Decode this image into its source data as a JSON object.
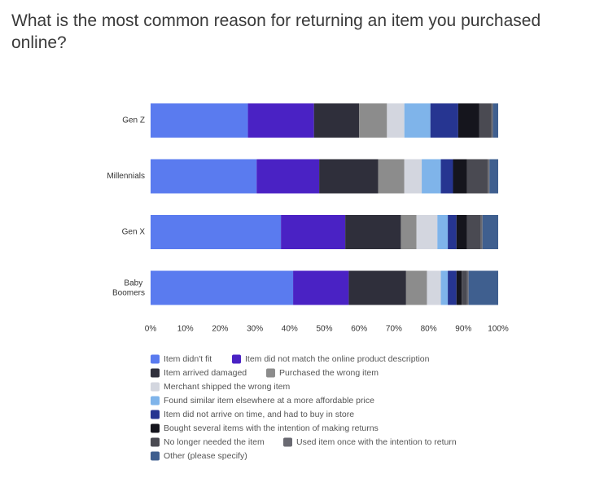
{
  "chart_data": {
    "type": "stacked-bar-horizontal",
    "title": "What is the most common reason for returning an item you purchased online?",
    "categories": [
      "Gen Z",
      "Millennials",
      "Gen X",
      "Baby Boomers"
    ],
    "xlim": [
      0,
      100
    ],
    "xticks": [
      {
        "value": 0,
        "label": "0%"
      },
      {
        "value": 10,
        "label": "10%"
      },
      {
        "value": 20,
        "label": "20%"
      },
      {
        "value": 30,
        "label": "30%"
      },
      {
        "value": 40,
        "label": "40%"
      },
      {
        "value": 50,
        "label": "50%"
      },
      {
        "value": 60,
        "label": "60%"
      },
      {
        "value": 70,
        "label": "70%"
      },
      {
        "value": 80,
        "label": "80%"
      },
      {
        "value": 90,
        "label": "90%"
      },
      {
        "value": 100,
        "label": "100%"
      }
    ],
    "series": [
      {
        "name": "Item didn't fit",
        "color": "#5a7bef",
        "values": [
          28,
          30.5,
          37.5,
          41
        ]
      },
      {
        "name": "Item did not match the online product description",
        "color": "#4a22c4",
        "values": [
          19,
          18,
          18.5,
          16
        ]
      },
      {
        "name": "Item arrived damaged",
        "color": "#2f2f3b",
        "values": [
          13,
          17,
          16,
          16.5
        ]
      },
      {
        "name": "Purchased the wrong item",
        "color": "#8c8c8c",
        "values": [
          8,
          7.5,
          4.5,
          6
        ]
      },
      {
        "name": "Merchant shipped the wrong item",
        "color": "#d3d6df",
        "values": [
          5,
          5,
          6,
          4
        ]
      },
      {
        "name": "Found similar item elsewhere at a more affordable price",
        "color": "#7fb4ea",
        "values": [
          7.5,
          5.5,
          3,
          2
        ]
      },
      {
        "name": "Item did not arrive on time, and had to buy in store",
        "color": "#263591",
        "values": [
          8,
          3.5,
          2.5,
          2.5
        ]
      },
      {
        "name": "Bought several items with the intention of making returns",
        "color": "#15151d",
        "values": [
          6,
          4,
          3,
          1.5
        ]
      },
      {
        "name": "No longer needed the item",
        "color": "#4a4a52",
        "values": [
          3.5,
          6,
          4,
          1.5
        ]
      },
      {
        "name": "Used item once with the intention to return",
        "color": "#6a6a72",
        "values": [
          0.5,
          0.5,
          0.5,
          0.5
        ]
      },
      {
        "name": "Other (please specify)",
        "color": "#3f5f8f",
        "values": [
          1.5,
          2.5,
          4.5,
          8.5
        ]
      }
    ]
  }
}
